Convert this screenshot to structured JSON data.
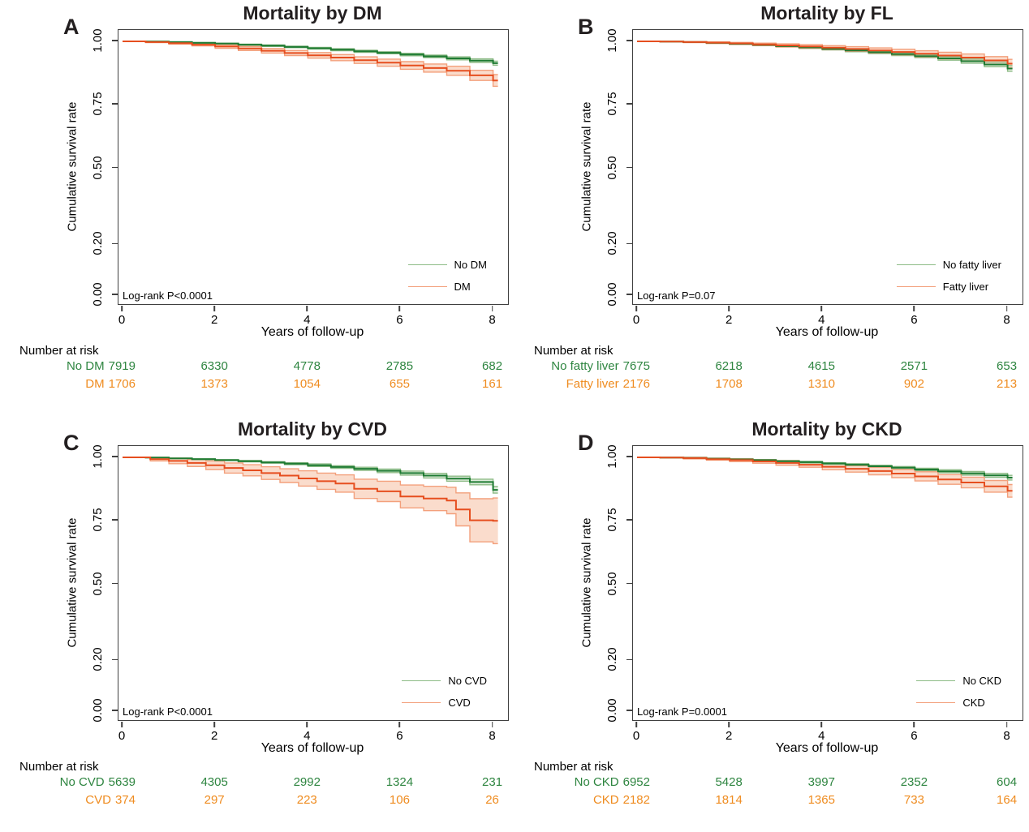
{
  "figure": {
    "background": "#ffffff"
  },
  "colors": {
    "green_line": "#1e7b33",
    "green_band_edge": "#8dbb86",
    "green_band_fill": "#dcead7",
    "orange_line": "#e64e1f",
    "orange_band_edge": "#f3a07c",
    "orange_band_fill": "#f9d8c6",
    "risk_green": "#2e8540",
    "risk_orange": "#ef8c20",
    "axis": "#404040",
    "title_text": "#231f20"
  },
  "chart_data": [
    {
      "type": "line",
      "subtype": "kaplan-meier",
      "panel_letter": "A",
      "title": "Mortality by DM",
      "xlabel": "Years of follow-up",
      "ylabel": "Cumulative survival rate",
      "xlim": [
        0,
        8.4
      ],
      "ylim": [
        0,
        1.0
      ],
      "grid": false,
      "legend_position": "lower right",
      "x_ticks": [
        "0",
        "2",
        "4",
        "6",
        "8"
      ],
      "x_tick_values": [
        0,
        2,
        4,
        6,
        8
      ],
      "y_ticks": [
        "1.00",
        "0.75",
        "0.50",
        "0.20",
        "0.00"
      ],
      "y_tick_values": [
        1.0,
        0.75,
        0.5,
        0.2,
        0.0
      ],
      "logrank_label": "Log-rank P<0.0001",
      "legend": [
        {
          "label": "No DM",
          "group": "green"
        },
        {
          "label": "DM",
          "group": "orange"
        }
      ],
      "series": [
        {
          "name": "No DM",
          "group": "green",
          "x": [
            0,
            0.5,
            1,
            1.5,
            2,
            2.5,
            3,
            3.5,
            4,
            4.5,
            5,
            5.5,
            6,
            6.5,
            7,
            7.5,
            8
          ],
          "y": [
            1,
            0.999,
            0.997,
            0.994,
            0.991,
            0.987,
            0.983,
            0.978,
            0.973,
            0.967,
            0.961,
            0.955,
            0.948,
            0.941,
            0.933,
            0.924,
            0.914
          ],
          "ci": [
            0,
            0.001,
            0.001,
            0.002,
            0.002,
            0.002,
            0.003,
            0.003,
            0.003,
            0.004,
            0.004,
            0.004,
            0.005,
            0.005,
            0.006,
            0.007,
            0.008
          ]
        },
        {
          "name": "DM",
          "group": "orange",
          "x": [
            0,
            0.5,
            1,
            1.5,
            2,
            2.5,
            3,
            3.5,
            4,
            4.5,
            5,
            5.5,
            6,
            6.5,
            7,
            7.5,
            8
          ],
          "y": [
            1,
            0.997,
            0.993,
            0.987,
            0.98,
            0.972,
            0.963,
            0.954,
            0.945,
            0.936,
            0.926,
            0.916,
            0.905,
            0.895,
            0.884,
            0.866,
            0.846
          ],
          "ci": [
            0,
            0.002,
            0.004,
            0.005,
            0.007,
            0.008,
            0.009,
            0.01,
            0.011,
            0.012,
            0.013,
            0.014,
            0.015,
            0.016,
            0.018,
            0.02,
            0.023
          ]
        }
      ],
      "risk_table": {
        "title": "Number at risk",
        "rows": [
          {
            "label": "No DM",
            "group": "green",
            "values": [
              "7919",
              "6330",
              "4778",
              "2785",
              "682"
            ]
          },
          {
            "label": "DM",
            "group": "orange",
            "values": [
              "1706",
              "1373",
              "1054",
              "655",
              "161"
            ]
          }
        ]
      }
    },
    {
      "type": "line",
      "subtype": "kaplan-meier",
      "panel_letter": "B",
      "title": "Mortality by FL",
      "xlabel": "Years of follow-up",
      "ylabel": "Cumulative survival rate",
      "xlim": [
        0,
        8.4
      ],
      "ylim": [
        0,
        1.0
      ],
      "grid": false,
      "legend_position": "lower right",
      "x_ticks": [
        "0",
        "2",
        "4",
        "6",
        "8"
      ],
      "x_tick_values": [
        0,
        2,
        4,
        6,
        8
      ],
      "y_ticks": [
        "1.00",
        "0.75",
        "0.50",
        "0.20",
        "0.00"
      ],
      "y_tick_values": [
        1.0,
        0.75,
        0.5,
        0.2,
        0.0
      ],
      "logrank_label": "Log-rank P=0.07",
      "legend": [
        {
          "label": "No fatty liver",
          "group": "green"
        },
        {
          "label": "Fatty liver",
          "group": "orange"
        }
      ],
      "series": [
        {
          "name": "No fatty liver",
          "group": "green",
          "x": [
            0,
            0.5,
            1,
            1.5,
            2,
            2.5,
            3,
            3.5,
            4,
            4.5,
            5,
            5.5,
            6,
            6.5,
            7,
            7.5,
            8
          ],
          "y": [
            1,
            0.999,
            0.997,
            0.994,
            0.99,
            0.986,
            0.981,
            0.976,
            0.97,
            0.964,
            0.957,
            0.95,
            0.942,
            0.933,
            0.922,
            0.909,
            0.893
          ],
          "ci": [
            0,
            0.001,
            0.001,
            0.002,
            0.002,
            0.003,
            0.003,
            0.004,
            0.004,
            0.005,
            0.005,
            0.006,
            0.006,
            0.007,
            0.008,
            0.009,
            0.011
          ]
        },
        {
          "name": "Fatty liver",
          "group": "orange",
          "x": [
            0,
            0.5,
            1,
            1.5,
            2,
            2.5,
            3,
            3.5,
            4,
            4.5,
            5,
            5.5,
            6,
            6.5,
            7,
            7.5,
            8
          ],
          "y": [
            1,
            0.999,
            0.997,
            0.995,
            0.992,
            0.988,
            0.984,
            0.98,
            0.975,
            0.97,
            0.964,
            0.958,
            0.951,
            0.944,
            0.936,
            0.925,
            0.912
          ],
          "ci": [
            0,
            0.001,
            0.002,
            0.003,
            0.004,
            0.005,
            0.006,
            0.007,
            0.008,
            0.009,
            0.01,
            0.011,
            0.012,
            0.013,
            0.014,
            0.015,
            0.017
          ]
        }
      ],
      "risk_table": {
        "title": "Number at risk",
        "rows": [
          {
            "label": "No fatty liver",
            "group": "green",
            "values": [
              "7675",
              "6218",
              "4615",
              "2571",
              "653"
            ]
          },
          {
            "label": "Fatty liver",
            "group": "orange",
            "values": [
              "2176",
              "1708",
              "1310",
              "902",
              "213"
            ]
          }
        ]
      }
    },
    {
      "type": "line",
      "subtype": "kaplan-meier",
      "panel_letter": "C",
      "title": "Mortality by CVD",
      "xlabel": "Years of follow-up",
      "ylabel": "Cumulative survival rate",
      "xlim": [
        0,
        8.4
      ],
      "ylim": [
        0,
        1.0
      ],
      "grid": false,
      "legend_position": "lower right",
      "x_ticks": [
        "0",
        "2",
        "4",
        "6",
        "8"
      ],
      "x_tick_values": [
        0,
        2,
        4,
        6,
        8
      ],
      "y_ticks": [
        "1.00",
        "0.75",
        "0.50",
        "0.20",
        "0.00"
      ],
      "y_tick_values": [
        1.0,
        0.75,
        0.5,
        0.2,
        0.0
      ],
      "logrank_label": "Log-rank P<0.0001",
      "legend": [
        {
          "label": "No CVD",
          "group": "green"
        },
        {
          "label": "CVD",
          "group": "orange"
        }
      ],
      "series": [
        {
          "name": "No CVD",
          "group": "green",
          "x": [
            0,
            0.5,
            1,
            1.5,
            2,
            2.5,
            3,
            3.5,
            4,
            4.5,
            5,
            5.5,
            6,
            6.5,
            7,
            7.5,
            8
          ],
          "y": [
            1,
            0.999,
            0.996,
            0.993,
            0.989,
            0.985,
            0.98,
            0.975,
            0.969,
            0.962,
            0.955,
            0.947,
            0.938,
            0.928,
            0.916,
            0.903,
            0.872
          ],
          "ci": [
            0,
            0.001,
            0.001,
            0.002,
            0.002,
            0.003,
            0.003,
            0.004,
            0.005,
            0.005,
            0.006,
            0.007,
            0.008,
            0.009,
            0.01,
            0.011,
            0.013
          ]
        },
        {
          "name": "CVD",
          "group": "orange",
          "x": [
            0,
            0.6,
            1,
            1.4,
            1.8,
            2.2,
            2.6,
            3,
            3.4,
            3.8,
            4.2,
            4.6,
            5,
            5.5,
            6,
            6.5,
            7,
            7.2,
            7.5,
            8
          ],
          "y": [
            1,
            0.993,
            0.986,
            0.978,
            0.969,
            0.958,
            0.949,
            0.938,
            0.928,
            0.917,
            0.906,
            0.897,
            0.876,
            0.866,
            0.846,
            0.838,
            0.83,
            0.795,
            0.752,
            0.75
          ],
          "ci": [
            0,
            0.007,
            0.011,
            0.014,
            0.017,
            0.02,
            0.022,
            0.025,
            0.027,
            0.03,
            0.032,
            0.034,
            0.038,
            0.04,
            0.045,
            0.048,
            0.052,
            0.065,
            0.085,
            0.09
          ]
        }
      ],
      "risk_table": {
        "title": "Number at risk",
        "rows": [
          {
            "label": "No CVD",
            "group": "green",
            "values": [
              "5639",
              "4305",
              "2992",
              "1324",
              "231"
            ]
          },
          {
            "label": "CVD",
            "group": "orange",
            "values": [
              "374",
              "297",
              "223",
              "106",
              "26"
            ]
          }
        ]
      }
    },
    {
      "type": "line",
      "subtype": "kaplan-meier",
      "panel_letter": "D",
      "title": "Mortality by CKD",
      "xlabel": "Years of follow-up",
      "ylabel": "Cumulative survival rate",
      "xlim": [
        0,
        8.4
      ],
      "ylim": [
        0,
        1.0
      ],
      "grid": false,
      "legend_position": "lower right",
      "x_ticks": [
        "0",
        "2",
        "4",
        "6",
        "8"
      ],
      "x_tick_values": [
        0,
        2,
        4,
        6,
        8
      ],
      "y_ticks": [
        "1.00",
        "0.75",
        "0.50",
        "0.20",
        "0.00"
      ],
      "y_tick_values": [
        1.0,
        0.75,
        0.5,
        0.2,
        0.0
      ],
      "logrank_label": "Log-rank P=0.0001",
      "legend": [
        {
          "label": "No CKD",
          "group": "green"
        },
        {
          "label": "CKD",
          "group": "orange"
        }
      ],
      "series": [
        {
          "name": "No CKD",
          "group": "green",
          "x": [
            0,
            0.5,
            1,
            1.5,
            2,
            2.5,
            3,
            3.5,
            4,
            4.5,
            5,
            5.5,
            6,
            6.5,
            7,
            7.5,
            8
          ],
          "y": [
            1,
            0.999,
            0.998,
            0.995,
            0.992,
            0.989,
            0.985,
            0.981,
            0.976,
            0.971,
            0.965,
            0.959,
            0.952,
            0.945,
            0.937,
            0.929,
            0.92
          ],
          "ci": [
            0,
            0.001,
            0.001,
            0.001,
            0.002,
            0.002,
            0.003,
            0.003,
            0.003,
            0.004,
            0.004,
            0.005,
            0.005,
            0.006,
            0.007,
            0.008,
            0.009
          ]
        },
        {
          "name": "CKD",
          "group": "orange",
          "x": [
            0,
            0.5,
            1,
            1.5,
            2,
            2.5,
            3,
            3.5,
            4,
            4.5,
            5,
            5.5,
            6,
            6.5,
            7,
            7.5,
            8
          ],
          "y": [
            1,
            0.999,
            0.997,
            0.993,
            0.989,
            0.984,
            0.978,
            0.971,
            0.963,
            0.955,
            0.946,
            0.936,
            0.925,
            0.913,
            0.901,
            0.886,
            0.868
          ],
          "ci": [
            0,
            0.001,
            0.003,
            0.004,
            0.006,
            0.007,
            0.009,
            0.01,
            0.012,
            0.013,
            0.015,
            0.016,
            0.018,
            0.019,
            0.021,
            0.023,
            0.025
          ]
        }
      ],
      "risk_table": {
        "title": "Number at risk",
        "rows": [
          {
            "label": "No CKD",
            "group": "green",
            "values": [
              "6952",
              "5428",
              "3997",
              "2352",
              "604"
            ]
          },
          {
            "label": "CKD",
            "group": "orange",
            "values": [
              "2182",
              "1814",
              "1365",
              "733",
              "164"
            ]
          }
        ]
      }
    }
  ]
}
